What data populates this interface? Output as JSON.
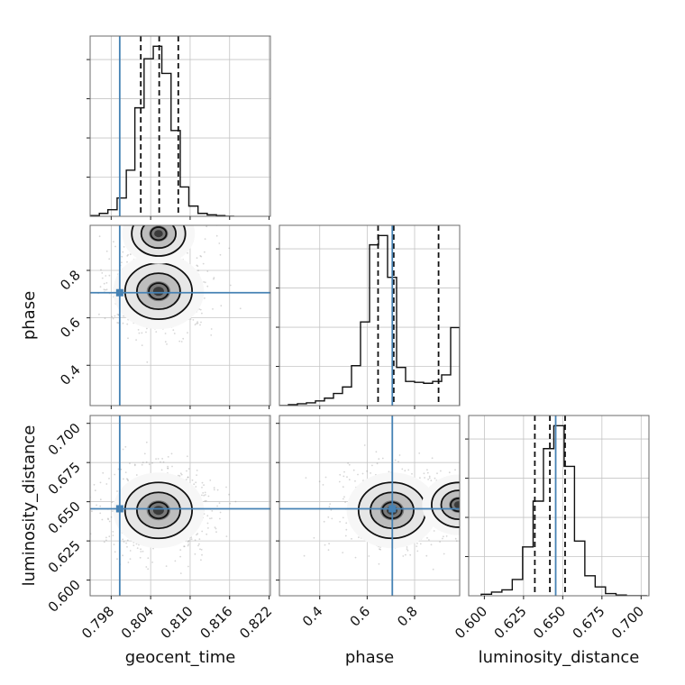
{
  "colors": {
    "truth": "#4682b4",
    "hist": "#111111",
    "grid": "#c4c4c4",
    "points": "#8a8a8a"
  },
  "chart_data": {
    "type": "corner",
    "parameters": [
      "geocent_time",
      "phase",
      "luminosity_distance"
    ],
    "truths": {
      "geocent_time": 0.7993,
      "phase": 0.706,
      "luminosity_distance": 0.6455
    },
    "quantiles": {
      "geocent_time": [
        0.8025,
        0.8053,
        0.8082
      ],
      "phase": [
        0.646,
        0.712,
        0.901
      ],
      "luminosity_distance": [
        0.6322,
        0.6418,
        0.6515
      ]
    },
    "axes": {
      "geocent_time": {
        "range": [
          0.7948,
          0.8222
        ],
        "ticks": [
          0.798,
          0.804,
          0.81,
          0.816,
          0.822
        ],
        "labels": [
          "0.798",
          "0.804",
          "0.810",
          "0.816",
          "0.822"
        ]
      },
      "phase": {
        "range": [
          0.23,
          0.99
        ],
        "ticks": [
          0.4,
          0.6,
          0.8
        ],
        "labels": [
          "0.4",
          "0.6",
          "0.8"
        ]
      },
      "luminosity_distance": {
        "range": [
          0.59,
          0.705
        ],
        "ticks": [
          0.6,
          0.625,
          0.65,
          0.675,
          0.7
        ],
        "labels": [
          "0.600",
          "0.625",
          "0.650",
          "0.675",
          "0.700"
        ]
      }
    },
    "histograms": {
      "geocent_time": {
        "edges": [
          0.7948,
          0.7962,
          0.7975,
          0.7989,
          0.8003,
          0.8016,
          0.803,
          0.8044,
          0.8057,
          0.8071,
          0.8085,
          0.8098,
          0.8112,
          0.8126,
          0.814,
          0.8153,
          0.8167
        ],
        "counts": [
          1,
          4,
          9,
          25,
          63,
          148,
          215,
          232,
          195,
          117,
          40,
          14,
          4,
          2,
          1,
          0
        ]
      },
      "phase": {
        "edges": [
          0.23,
          0.268,
          0.306,
          0.344,
          0.382,
          0.42,
          0.458,
          0.496,
          0.534,
          0.572,
          0.61,
          0.648,
          0.686,
          0.724,
          0.762,
          0.8,
          0.838,
          0.876,
          0.914,
          0.952,
          0.99
        ],
        "counts": [
          0,
          1,
          2,
          3,
          5,
          8,
          13,
          20,
          43,
          90,
          173,
          183,
          138,
          41,
          26,
          25,
          24,
          26,
          33,
          84
        ]
      },
      "luminosity_distance": {
        "edges": [
          0.598,
          0.6046,
          0.6112,
          0.6178,
          0.6244,
          0.6311,
          0.6377,
          0.6443,
          0.6509,
          0.6575,
          0.6641,
          0.6707,
          0.6773,
          0.684,
          0.6906,
          0.6972,
          0.7038
        ],
        "counts": [
          2,
          5,
          8,
          22,
          66,
          128,
          199,
          230,
          175,
          74,
          27,
          12,
          3,
          1,
          0,
          0
        ]
      }
    },
    "density_modes": [
      {
        "x": "geocent_time",
        "y": "phase",
        "centers": [
          [
            0.8052,
            0.712
          ],
          [
            0.8052,
            0.955
          ]
        ]
      },
      {
        "x": "geocent_time",
        "y": "luminosity_distance",
        "centers": [
          [
            0.8052,
            0.6445
          ]
        ]
      },
      {
        "x": "phase",
        "y": "luminosity_distance",
        "centers": [
          [
            0.705,
            0.6445
          ],
          [
            0.985,
            0.648
          ]
        ]
      }
    ]
  }
}
